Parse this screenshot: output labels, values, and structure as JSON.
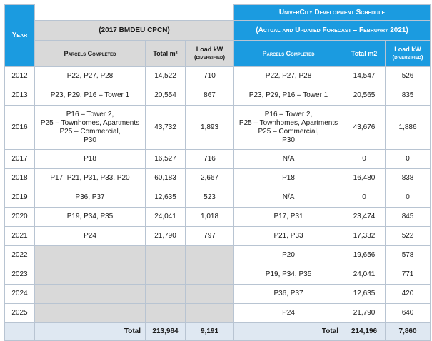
{
  "title": "UniverCity Development Schedule",
  "headers": {
    "year": "Year",
    "cpcn_group": "(2017 BMDEU CPCN)",
    "forecast_group": "(Actual and Updated Forecast – February 2021)",
    "parcels_completed": "Parcels Completed",
    "total_m2_left": "Total m²",
    "load_kw": "Load kW",
    "diversified": "(diversified)",
    "total_m2_right": "Total m2"
  },
  "rows": [
    {
      "year": "2012",
      "cpcn_parcels": "P22, P27, P28",
      "cpcn_m2": "14,522",
      "cpcn_kw": "710",
      "fc_parcels": "P22, P27, P28",
      "fc_m2": "14,547",
      "fc_kw": "526"
    },
    {
      "year": "2013",
      "cpcn_parcels": "P23, P29, P16 – Tower 1",
      "cpcn_m2": "20,554",
      "cpcn_kw": "867",
      "fc_parcels": "P23, P29, P16 – Tower 1",
      "fc_m2": "20,565",
      "fc_kw": "835"
    },
    {
      "year": "2016",
      "cpcn_parcels": [
        "P16 – Tower 2,",
        "P25 – Townhomes, Apartments",
        "P25 – Commercial,",
        "P30"
      ],
      "cpcn_m2": "43,732",
      "cpcn_kw": "1,893",
      "fc_parcels": [
        "P16 – Tower 2,",
        "P25 – Townhomes, Apartments",
        "P25 – Commercial,",
        "P30"
      ],
      "fc_m2": "43,676",
      "fc_kw": "1,886"
    },
    {
      "year": "2017",
      "cpcn_parcels": "P18",
      "cpcn_m2": "16,527",
      "cpcn_kw": "716",
      "fc_parcels": "N/A",
      "fc_m2": "0",
      "fc_kw": "0"
    },
    {
      "year": "2018",
      "cpcn_parcels": "P17, P21, P31, P33, P20",
      "cpcn_m2": "60,183",
      "cpcn_kw": "2,667",
      "fc_parcels": "P18",
      "fc_m2": "16,480",
      "fc_kw": "838"
    },
    {
      "year": "2019",
      "cpcn_parcels": "P36, P37",
      "cpcn_m2": "12,635",
      "cpcn_kw": "523",
      "fc_parcels": "N/A",
      "fc_m2": "0",
      "fc_kw": "0"
    },
    {
      "year": "2020",
      "cpcn_parcels": "P19, P34, P35",
      "cpcn_m2": "24,041",
      "cpcn_kw": "1,018",
      "fc_parcels": "P17, P31",
      "fc_m2": "23,474",
      "fc_kw": "845"
    },
    {
      "year": "2021",
      "cpcn_parcels": "P24",
      "cpcn_m2": "21,790",
      "cpcn_kw": "797",
      "fc_parcels": "P21, P33",
      "fc_m2": "17,332",
      "fc_kw": "522"
    },
    {
      "year": "2022",
      "fc_parcels": "P20",
      "fc_m2": "19,656",
      "fc_kw": "578"
    },
    {
      "year": "2023",
      "fc_parcels": "P19, P34, P35",
      "fc_m2": "24,041",
      "fc_kw": "771"
    },
    {
      "year": "2024",
      "fc_parcels": "P36, P37",
      "fc_m2": "12,635",
      "fc_kw": "420"
    },
    {
      "year": "2025",
      "fc_parcels": "P24",
      "fc_m2": "21,790",
      "fc_kw": "640"
    }
  ],
  "totals": {
    "label_left": "Total",
    "cpcn_m2": "213,984",
    "cpcn_kw": "9,191",
    "label_right": "Total",
    "fc_m2": "214,196",
    "fc_kw": "7,860"
  }
}
